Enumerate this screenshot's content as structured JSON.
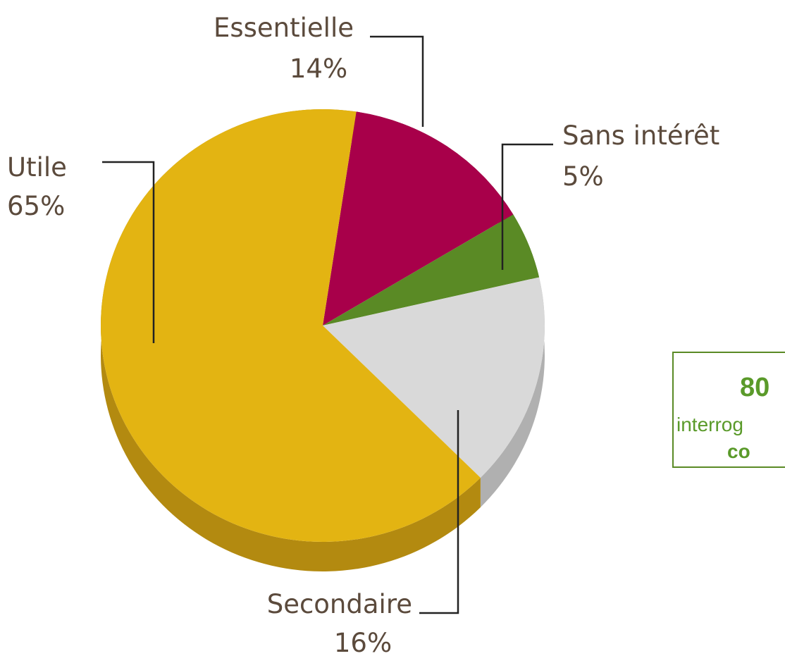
{
  "chart_data": {
    "type": "pie",
    "categories": [
      "Essentielle",
      "Sans intérêt",
      "Secondaire",
      "Utile"
    ],
    "values": [
      14,
      5,
      16,
      65
    ],
    "value_labels": [
      "14%",
      "5%",
      "16%",
      "65%"
    ],
    "colors": [
      "#a8004a",
      "#5a8a25",
      "#d9d9d9",
      "#e3b412"
    ],
    "side_colors": [
      "#7a0036",
      "#3f6419",
      "#b0b0b0",
      "#b38a10"
    ],
    "annotations": [
      "80",
      "interrog",
      "co"
    ]
  }
}
